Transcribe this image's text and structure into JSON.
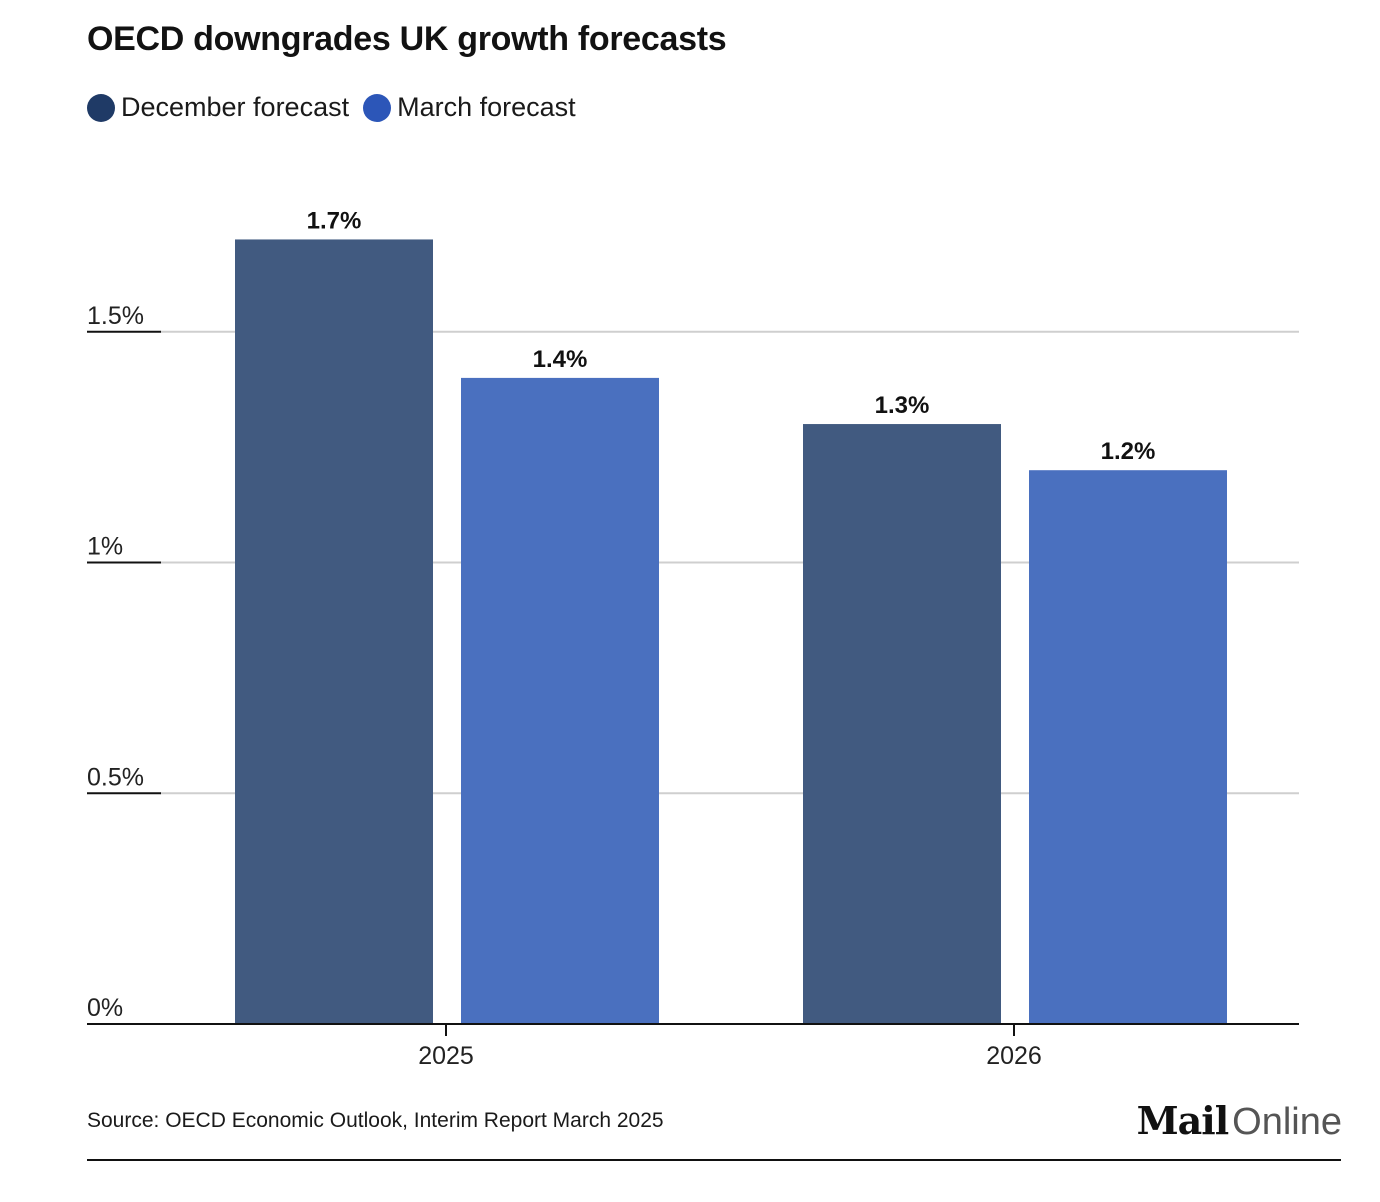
{
  "chart_data": {
    "type": "bar",
    "title": "OECD downgrades UK growth forecasts",
    "categories": [
      "2025",
      "2026"
    ],
    "series": [
      {
        "name": "December forecast",
        "color": "#415a80",
        "values": [
          1.7,
          1.3
        ],
        "labels": [
          "1.7%",
          "1.3%"
        ]
      },
      {
        "name": "March forecast",
        "color": "#4a70bf",
        "values": [
          1.4,
          1.2
        ],
        "labels": [
          "1.4%",
          "1.2%"
        ]
      }
    ],
    "yticks": [
      {
        "value": 0,
        "label": "0%"
      },
      {
        "value": 0.5,
        "label": "0.5%"
      },
      {
        "value": 1,
        "label": "1%"
      },
      {
        "value": 1.5,
        "label": "1.5%"
      }
    ],
    "ylim": [
      0,
      2.0
    ],
    "xlabel": "",
    "ylabel": "",
    "grid": true,
    "legend_position": "top-left"
  },
  "legend": {
    "items": [
      {
        "label": "December forecast",
        "color": "#1f3a66"
      },
      {
        "label": "March forecast",
        "color": "#2c56b8"
      }
    ]
  },
  "footer": {
    "source": "Source: OECD Economic Outlook, Interim Report March 2025",
    "logo_mail": "Mail",
    "logo_online": "Online"
  }
}
